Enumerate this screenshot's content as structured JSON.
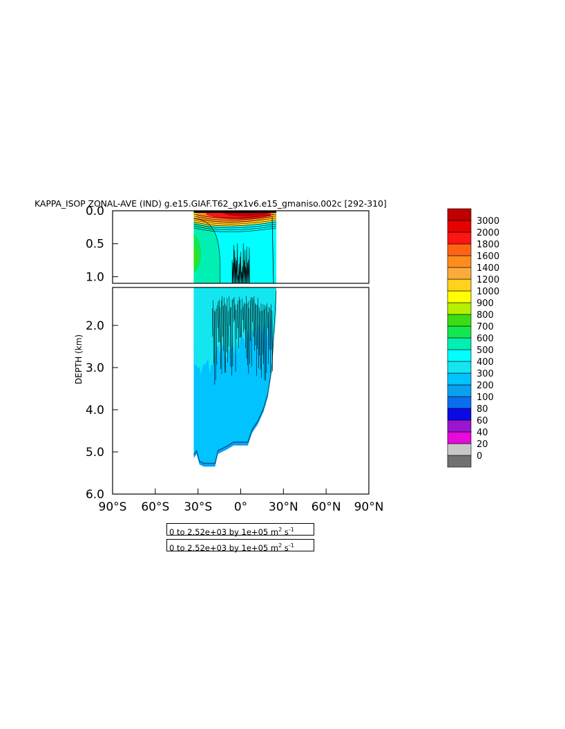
{
  "chart_data": {
    "type": "heatmap",
    "title": "KAPPA_ISOP ZONAL-AVE (IND) g.e15.GIAF.T62_gx1v6.e15_gmaniso.002c [292-310]",
    "ylabel": "DEPTH (km)",
    "x_ticks": [
      "90°S",
      "60°S",
      "30°S",
      "0°",
      "30°N",
      "60°N",
      "90°N"
    ],
    "x_tick_values": [
      -90,
      -60,
      -30,
      0,
      30,
      60,
      90
    ],
    "xlim": [
      -90,
      90
    ],
    "upper_panel": {
      "ylim": [
        0.0,
        1.1
      ],
      "y_ticks": [
        "0.0",
        "0.5",
        "1.0"
      ],
      "y_tick_values": [
        0.0,
        0.5,
        1.0
      ]
    },
    "lower_panel": {
      "ylim": [
        1.1,
        6.0
      ],
      "y_ticks": [
        "2.0",
        "3.0",
        "4.0",
        "5.0",
        "6.0"
      ],
      "y_tick_values": [
        2.0,
        3.0,
        4.0,
        5.0,
        6.0
      ]
    },
    "colorbar": {
      "levels": [
        "0",
        "20",
        "40",
        "60",
        "80",
        "100",
        "200",
        "300",
        "400",
        "500",
        "600",
        "700",
        "800",
        "900",
        "1000",
        "1200",
        "1400",
        "1600",
        "1800",
        "2000",
        "3000"
      ],
      "colors": [
        "#707070",
        "#c8c8c8",
        "#e60adc",
        "#9b14d2",
        "#0a0ae6",
        "#0a6ef0",
        "#0aa0f0",
        "#00c3ff",
        "#14e6f0",
        "#00ffff",
        "#00f0b4",
        "#14e650",
        "#3cdc14",
        "#b4f000",
        "#ffff00",
        "#ffd21e",
        "#fbaa3c",
        "#ff8c1e",
        "#ff6414",
        "#ff1414",
        "#e60000",
        "#be0000"
      ]
    },
    "grid": false,
    "legend_placement": "right",
    "info_lines": [
      {
        "text": "0 to 2.52e+03 by 1e+05 m",
        "exp1": "2",
        "mid": " s",
        "exp2": "-1"
      },
      {
        "text": "0 to 2.52e+03 by 1e+05 m",
        "exp1": "2",
        "mid": " s",
        "exp2": "-1"
      }
    ],
    "field_extent": {
      "lat_south": -33,
      "lat_north": 25,
      "max_depth_km": 5.4
    },
    "depth_profile": [
      {
        "lat": -33,
        "depth": 5.15
      },
      {
        "lat": -31,
        "depth": 5.05
      },
      {
        "lat": -29,
        "depth": 5.3
      },
      {
        "lat": -26,
        "depth": 5.35
      },
      {
        "lat": -23,
        "depth": 5.35
      },
      {
        "lat": -18,
        "depth": 5.35
      },
      {
        "lat": -16,
        "depth": 5.05
      },
      {
        "lat": -10,
        "depth": 4.95
      },
      {
        "lat": -5,
        "depth": 4.85
      },
      {
        "lat": 5,
        "depth": 4.85
      },
      {
        "lat": 8,
        "depth": 4.55
      },
      {
        "lat": 12,
        "depth": 4.35
      },
      {
        "lat": 16,
        "depth": 4.05
      },
      {
        "lat": 19,
        "depth": 3.7
      },
      {
        "lat": 22,
        "depth": 3.05
      },
      {
        "lat": 25,
        "depth": 1.25
      }
    ]
  }
}
